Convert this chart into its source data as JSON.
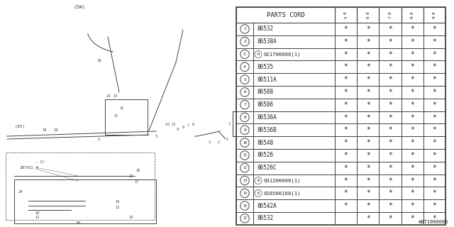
{
  "doc_number": "A871000066",
  "table": {
    "col_header": "PARTS CORD",
    "year_cols": [
      "85",
      "86",
      "87",
      "88",
      "89"
    ],
    "rows": [
      {
        "num": "1",
        "code": "86532",
        "prefix": "",
        "stars": [
          true,
          true,
          true,
          true,
          true
        ]
      },
      {
        "num": "2",
        "code": "86538A",
        "prefix": "",
        "stars": [
          true,
          true,
          true,
          true,
          true
        ]
      },
      {
        "num": "3",
        "code": "021706000(1)",
        "prefix": "N",
        "stars": [
          true,
          true,
          true,
          true,
          true
        ]
      },
      {
        "num": "4",
        "code": "86535",
        "prefix": "",
        "stars": [
          true,
          true,
          true,
          true,
          true
        ]
      },
      {
        "num": "5",
        "code": "86511A",
        "prefix": "",
        "stars": [
          true,
          true,
          true,
          true,
          true
        ]
      },
      {
        "num": "6",
        "code": "86588",
        "prefix": "",
        "stars": [
          true,
          true,
          true,
          true,
          true
        ]
      },
      {
        "num": "7",
        "code": "86586",
        "prefix": "",
        "stars": [
          true,
          true,
          true,
          true,
          true
        ]
      },
      {
        "num": "8",
        "code": "86536A",
        "prefix": "",
        "stars": [
          true,
          true,
          true,
          true,
          true
        ]
      },
      {
        "num": "9",
        "code": "86536B",
        "prefix": "",
        "stars": [
          true,
          true,
          true,
          true,
          true
        ]
      },
      {
        "num": "10",
        "code": "86548",
        "prefix": "",
        "stars": [
          true,
          true,
          true,
          true,
          true
        ]
      },
      {
        "num": "11",
        "code": "86526",
        "prefix": "",
        "stars": [
          true,
          true,
          true,
          true,
          true
        ]
      },
      {
        "num": "12",
        "code": "86526C",
        "prefix": "",
        "stars": [
          true,
          true,
          true,
          true,
          true
        ]
      },
      {
        "num": "13",
        "code": "031206000(1)",
        "prefix": "W",
        "stars": [
          true,
          true,
          true,
          true,
          true
        ]
      },
      {
        "num": "14",
        "code": "016506160(1)",
        "prefix": "B",
        "stars": [
          true,
          true,
          true,
          true,
          true
        ]
      },
      {
        "num": "15",
        "code": "86542A",
        "prefix": "",
        "stars": [
          true,
          true,
          true,
          true,
          true
        ]
      },
      {
        "num": "17",
        "code": "86532",
        "prefix": "",
        "stars": [
          false,
          true,
          true,
          true,
          true
        ]
      }
    ]
  },
  "bg_color": "#ffffff",
  "line_color": "#444444",
  "text_color": "#222222"
}
